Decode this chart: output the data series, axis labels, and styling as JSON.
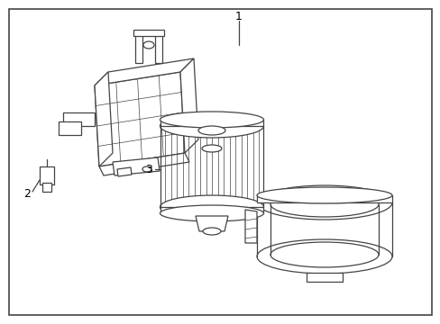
{
  "background_color": "#ffffff",
  "border_color": "#444444",
  "line_color": "#444444",
  "label_1": "1",
  "label_2": "2",
  "label_3": "3",
  "label_fontsize": 9,
  "fig_width": 4.89,
  "fig_height": 3.6,
  "dpi": 100
}
